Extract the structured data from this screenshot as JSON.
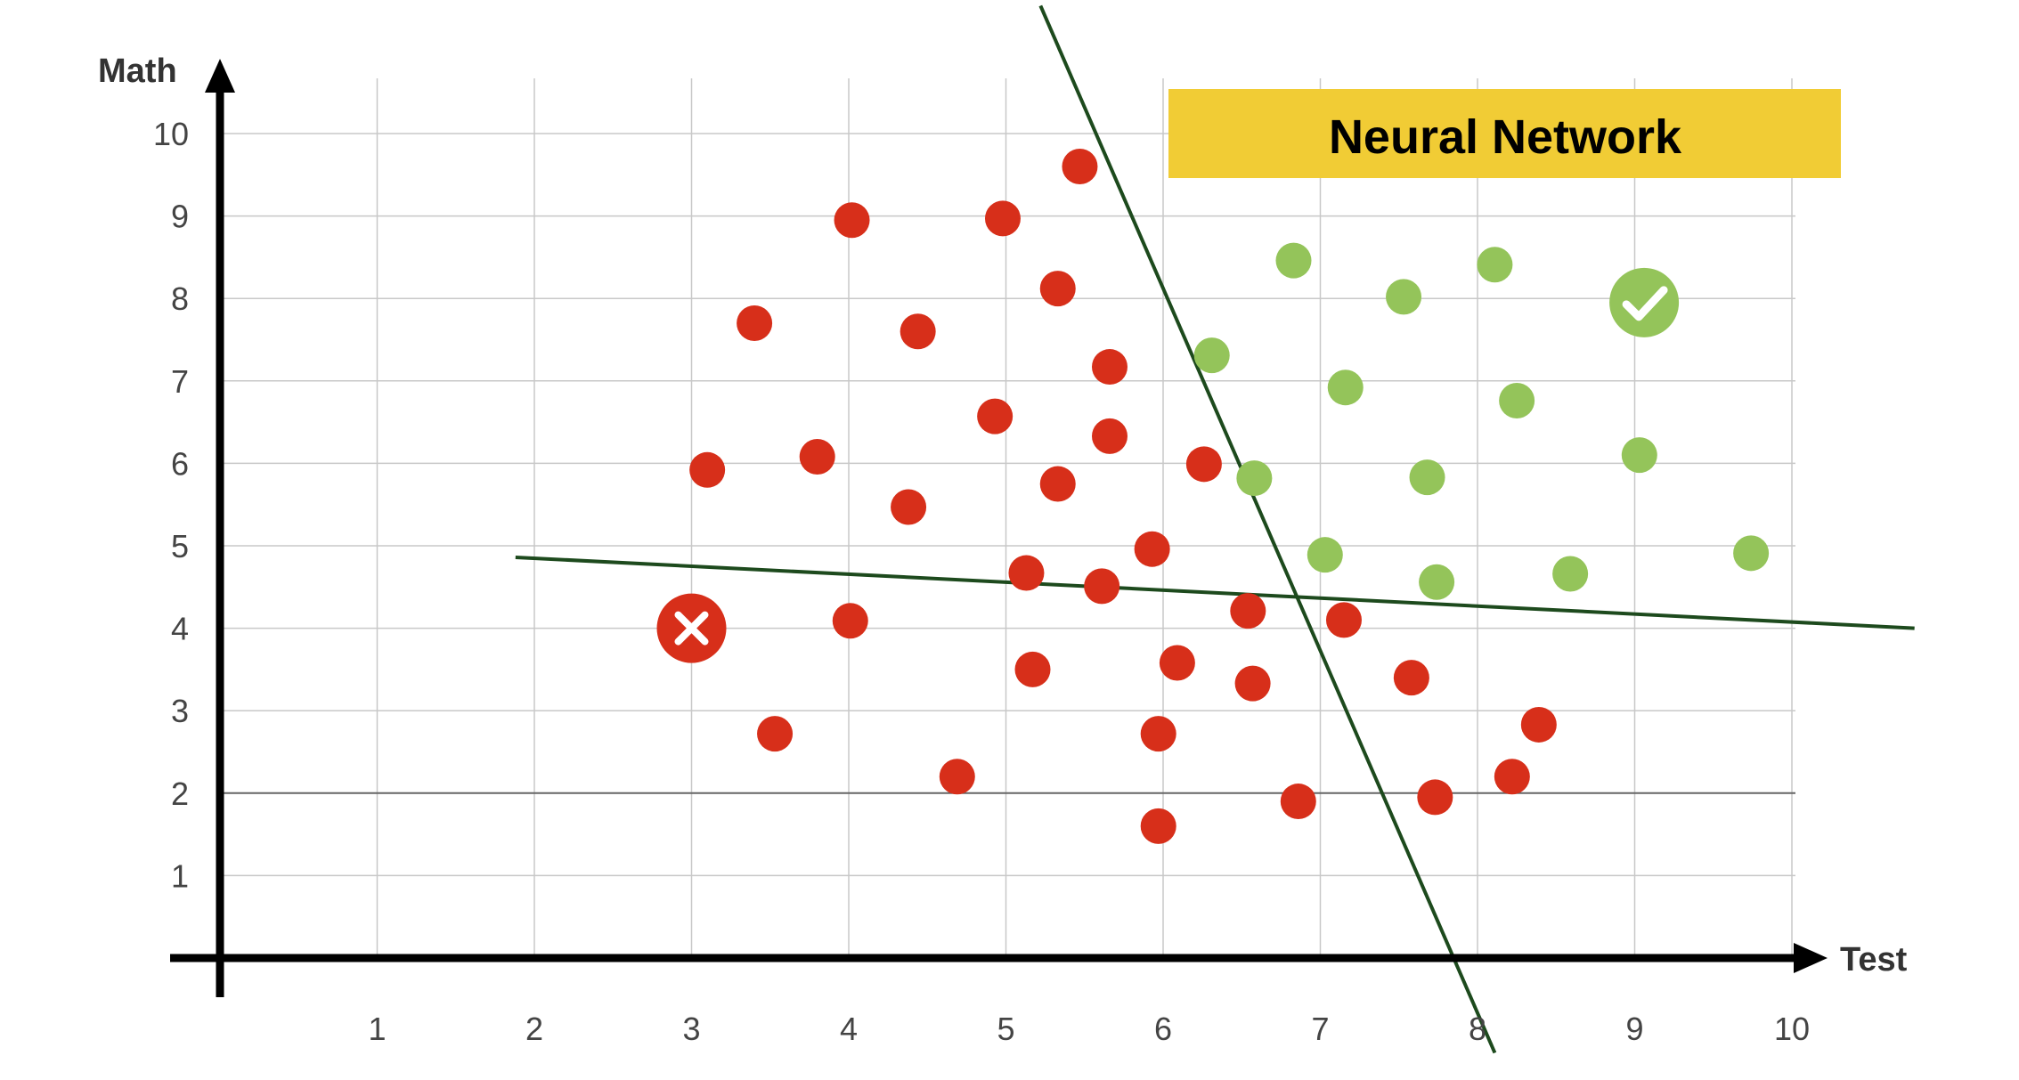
{
  "chart_data": {
    "type": "scatter",
    "title": "Neural Network",
    "xlabel": "Test",
    "ylabel": "Math",
    "x_ticks": [
      1,
      2,
      3,
      4,
      5,
      6,
      7,
      8,
      9,
      10
    ],
    "y_ticks": [
      1,
      2,
      3,
      4,
      5,
      6,
      7,
      8,
      9,
      10
    ],
    "xlim": [
      0,
      10.5
    ],
    "ylim": [
      0,
      10
    ],
    "grid": true,
    "colors": {
      "red": "#d72f1a",
      "green": "#94c45a",
      "line": "#1d4a1d",
      "banner": "#f1cc35",
      "grid": "#c8c8c8",
      "axis": "#000000"
    },
    "series": [
      {
        "color": "red",
        "points": [
          [
            5.47,
            9.6
          ],
          [
            4.02,
            8.95
          ],
          [
            4.98,
            8.97
          ],
          [
            5.33,
            8.12
          ],
          [
            3.4,
            7.7
          ],
          [
            4.44,
            7.6
          ],
          [
            5.66,
            7.17
          ],
          [
            4.93,
            6.57
          ],
          [
            5.66,
            6.33
          ],
          [
            3.1,
            5.92
          ],
          [
            3.8,
            6.08
          ],
          [
            6.26,
            5.99
          ],
          [
            5.33,
            5.75
          ],
          [
            4.38,
            5.47
          ],
          [
            5.93,
            4.96
          ],
          [
            5.13,
            4.67
          ],
          [
            5.61,
            4.51
          ],
          [
            6.54,
            4.21
          ],
          [
            7.15,
            4.1
          ],
          [
            4.01,
            4.09
          ],
          [
            5.17,
            3.5
          ],
          [
            6.09,
            3.58
          ],
          [
            6.57,
            3.33
          ],
          [
            7.58,
            3.4
          ],
          [
            3.53,
            2.72
          ],
          [
            4.69,
            2.2
          ],
          [
            5.97,
            2.72
          ],
          [
            8.39,
            2.83
          ],
          [
            8.22,
            2.2
          ],
          [
            6.86,
            1.9
          ],
          [
            7.73,
            1.95
          ],
          [
            5.97,
            1.6
          ]
        ]
      },
      {
        "color": "green",
        "points": [
          [
            6.83,
            8.46
          ],
          [
            8.11,
            8.41
          ],
          [
            7.53,
            8.02
          ],
          [
            6.31,
            7.31
          ],
          [
            7.16,
            6.92
          ],
          [
            8.25,
            6.76
          ],
          [
            6.58,
            5.82
          ],
          [
            7.68,
            5.83
          ],
          [
            9.03,
            6.1
          ],
          [
            7.03,
            4.89
          ],
          [
            7.74,
            4.56
          ],
          [
            8.59,
            4.66
          ],
          [
            9.74,
            4.91
          ]
        ]
      }
    ],
    "highlighted_points": [
      {
        "label": "fail",
        "color": "red",
        "x": 3.0,
        "y": 4.0,
        "icon": "cross-icon"
      },
      {
        "label": "pass",
        "color": "green",
        "x": 9.06,
        "y": 7.95,
        "icon": "check-icon"
      }
    ],
    "decision_lines": [
      {
        "from": [
          1.88,
          4.86
        ],
        "to": [
          10.78,
          4.0
        ]
      },
      {
        "from": [
          5.22,
          11.55
        ],
        "to": [
          8.11,
          -1.15
        ]
      }
    ]
  }
}
